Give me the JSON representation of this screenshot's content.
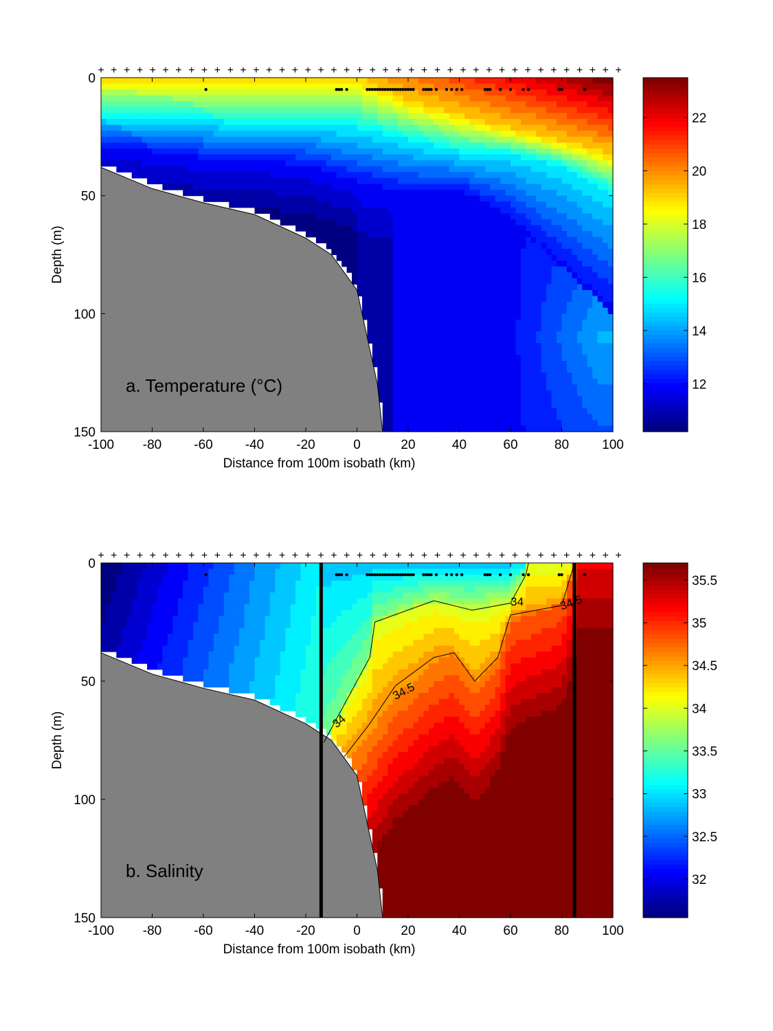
{
  "chart_data": [
    {
      "type": "heatmap",
      "title": "a. Temperature (°C)",
      "xlabel": "Distance from 100m isobath (km)",
      "ylabel": "Depth (m)",
      "xlim": [
        -100,
        100
      ],
      "ylim": [
        150,
        0
      ],
      "xticks": [
        -100,
        -80,
        -60,
        -40,
        -20,
        0,
        20,
        40,
        60,
        80,
        100
      ],
      "yticks": [
        0,
        50,
        100,
        150
      ],
      "colorbar": {
        "range": [
          10.2,
          23.5
        ],
        "ticks": [
          12,
          14,
          16,
          18,
          20,
          22
        ]
      },
      "isotherm_depths": {
        "x": [
          -100,
          -80,
          -60,
          -40,
          -20,
          0,
          20,
          40,
          60,
          80,
          100
        ],
        "t19": [
          -1,
          -1,
          -1,
          -1,
          -1,
          0,
          10,
          16,
          22,
          27,
          33
        ],
        "t15": [
          17,
          18,
          19,
          20,
          20,
          22,
          27,
          32,
          33,
          38,
          50
        ],
        "t12": [
          30,
          32,
          35,
          36,
          38,
          45,
          50,
          48,
          60,
          80,
          100
        ]
      },
      "surface_samples_km": [
        -59,
        -8,
        -7,
        -6,
        -4,
        4,
        5,
        6,
        7,
        8,
        9,
        10,
        11,
        12,
        13,
        14,
        15,
        16,
        17,
        18,
        19,
        20,
        21,
        22,
        26,
        27,
        28,
        29,
        31,
        35,
        37,
        39,
        41,
        50,
        51,
        52,
        56,
        60,
        65,
        67,
        79,
        80,
        89
      ],
      "bathymetry": {
        "x": [
          -100,
          -80,
          -60,
          -40,
          -20,
          -10,
          0,
          5,
          8,
          10
        ],
        "depth": [
          38,
          47,
          53,
          58,
          68,
          75,
          90,
          115,
          130,
          150
        ]
      }
    },
    {
      "type": "heatmap",
      "title": "b. Salinity",
      "xlabel": "Distance from 100m isobath (km)",
      "ylabel": "Depth (m)",
      "xlim": [
        -100,
        100
      ],
      "ylim": [
        150,
        0
      ],
      "xticks": [
        -100,
        -80,
        -60,
        -40,
        -20,
        0,
        20,
        40,
        60,
        80,
        100
      ],
      "yticks": [
        0,
        50,
        100,
        150
      ],
      "colorbar": {
        "range": [
          31.55,
          35.7
        ],
        "ticks": [
          32,
          32.5,
          33,
          33.5,
          34,
          34.5,
          35,
          35.5
        ]
      },
      "contours": [
        {
          "level": "34",
          "x": [
            -13,
            -5,
            5,
            7,
            30,
            45,
            60,
            66,
            67
          ],
          "depth": [
            76,
            60,
            40,
            25,
            16,
            20,
            17,
            5,
            0
          ]
        },
        {
          "level": "34.5",
          "x": [
            -5,
            5,
            15,
            30,
            38,
            46,
            55,
            60,
            80,
            85
          ],
          "depth": [
            82,
            68,
            52,
            40,
            38,
            50,
            40,
            22,
            18,
            0
          ]
        }
      ],
      "vertical_lines_km": [
        -14,
        85
      ],
      "surface_samples_km": [
        -59,
        -8,
        -7,
        -6,
        -4,
        4,
        5,
        6,
        7,
        8,
        9,
        10,
        11,
        12,
        13,
        14,
        15,
        16,
        17,
        18,
        19,
        20,
        21,
        22,
        26,
        27,
        28,
        29,
        31,
        35,
        37,
        39,
        41,
        50,
        51,
        52,
        56,
        60,
        65,
        67,
        79,
        80,
        89
      ],
      "bathymetry": {
        "x": [
          -100,
          -80,
          -60,
          -40,
          -20,
          -10,
          0,
          5,
          8,
          10
        ],
        "depth": [
          38,
          47,
          53,
          58,
          68,
          75,
          90,
          115,
          130,
          150
        ]
      }
    }
  ]
}
